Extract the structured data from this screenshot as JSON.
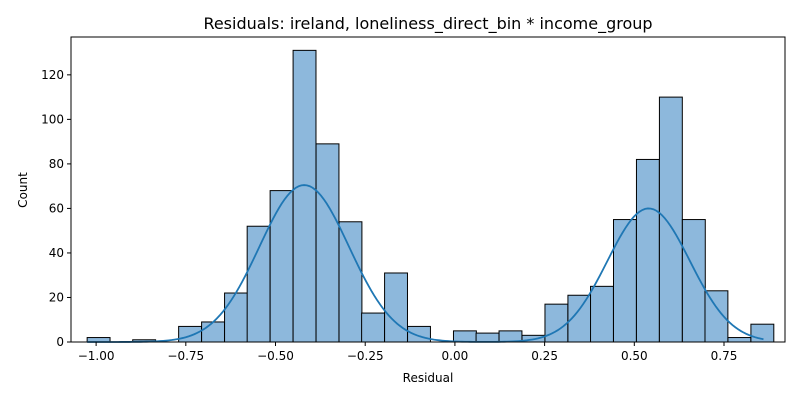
{
  "chart_data": {
    "type": "bar",
    "title": "Residuals: ireland, loneliness_direct_bin * income_group",
    "xlabel": "Residual",
    "ylabel": "Count",
    "xlim": [
      -1.07,
      0.92
    ],
    "ylim": [
      0,
      137
    ],
    "xticks": [
      -1.0,
      -0.75,
      -0.5,
      -0.25,
      0.0,
      0.25,
      0.5,
      0.75
    ],
    "xtick_labels": [
      "−1.00",
      "−0.75",
      "−0.50",
      "−0.25",
      "0.00",
      "0.25",
      "0.50",
      "0.75"
    ],
    "yticks": [
      0,
      20,
      40,
      60,
      80,
      100,
      120
    ],
    "ytick_labels": [
      "0",
      "20",
      "40",
      "60",
      "80",
      "100",
      "120"
    ],
    "bin_width": 0.0638,
    "bins": [
      {
        "x0": -1.025,
        "count": 2
      },
      {
        "x0": -0.961,
        "count": 0
      },
      {
        "x0": -0.898,
        "count": 1
      },
      {
        "x0": -0.834,
        "count": 0
      },
      {
        "x0": -0.77,
        "count": 7
      },
      {
        "x0": -0.706,
        "count": 9
      },
      {
        "x0": -0.642,
        "count": 22
      },
      {
        "x0": -0.579,
        "count": 52
      },
      {
        "x0": -0.515,
        "count": 68
      },
      {
        "x0": -0.451,
        "count": 131
      },
      {
        "x0": -0.387,
        "count": 89
      },
      {
        "x0": -0.323,
        "count": 54
      },
      {
        "x0": -0.26,
        "count": 13
      },
      {
        "x0": -0.196,
        "count": 31
      },
      {
        "x0": -0.132,
        "count": 7
      },
      {
        "x0": -0.068,
        "count": 0
      },
      {
        "x0": -0.004,
        "count": 5
      },
      {
        "x0": 0.059,
        "count": 4
      },
      {
        "x0": 0.123,
        "count": 5
      },
      {
        "x0": 0.187,
        "count": 3
      },
      {
        "x0": 0.251,
        "count": 17
      },
      {
        "x0": 0.315,
        "count": 21
      },
      {
        "x0": 0.378,
        "count": 25
      },
      {
        "x0": 0.442,
        "count": 55
      },
      {
        "x0": 0.506,
        "count": 82
      },
      {
        "x0": 0.57,
        "count": 110
      },
      {
        "x0": 0.634,
        "count": 55
      },
      {
        "x0": 0.697,
        "count": 23
      },
      {
        "x0": 0.761,
        "count": 2
      },
      {
        "x0": 0.825,
        "count": 8
      }
    ],
    "kde": {
      "x_range": [
        -1.025,
        0.86
      ],
      "components": [
        {
          "mean": -0.42,
          "sd": 0.125,
          "peak": 70.5
        },
        {
          "mean": 0.54,
          "sd": 0.115,
          "peak": 60
        }
      ]
    },
    "colors": {
      "bar_fill": "#8db8dc",
      "bar_edge": "#000000",
      "kde_line": "#1f77b4"
    },
    "grid": false,
    "legend": "none"
  }
}
